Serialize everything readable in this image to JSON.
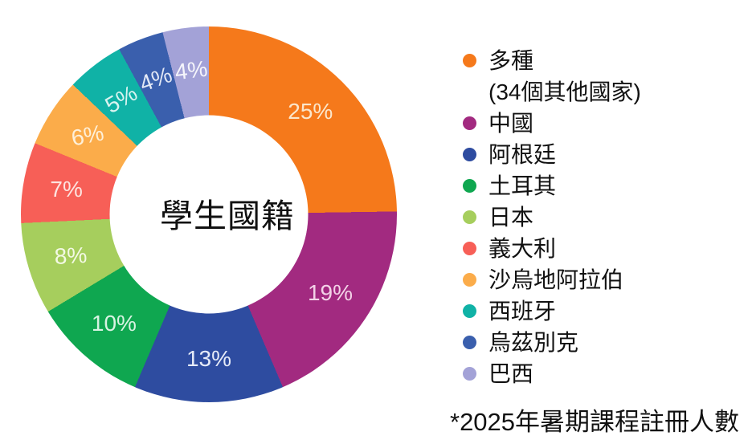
{
  "chart_data": {
    "type": "pie",
    "subtype": "donut",
    "center_label": "學生國籍",
    "unit": "%",
    "legend_position": "right",
    "slices": [
      {
        "label": "多種 (34個其他國家)",
        "legend_lines": [
          "多種",
          "(34個其他國家)"
        ],
        "value": 25,
        "display": "25%",
        "color": "#F5791B",
        "text_color": "#FBE6CB",
        "label_rotation": 0
      },
      {
        "label": "中國",
        "legend_lines": [
          "中國"
        ],
        "value": 19,
        "display": "19%",
        "color": "#A22A80",
        "text_color": "#F3D2E7",
        "label_rotation": 0
      },
      {
        "label": "阿根廷",
        "legend_lines": [
          "阿根廷"
        ],
        "value": 13,
        "display": "13%",
        "color": "#2E4CA0",
        "text_color": "#E6EBF8",
        "label_rotation": 0
      },
      {
        "label": "土耳其",
        "legend_lines": [
          "土耳其"
        ],
        "value": 10,
        "display": "10%",
        "color": "#0FA750",
        "text_color": "#D8F3E2",
        "label_rotation": 0
      },
      {
        "label": "日本",
        "legend_lines": [
          "日本"
        ],
        "value": 8,
        "display": "8%",
        "color": "#A6CE5D",
        "text_color": "#F3F9E4",
        "label_rotation": -3
      },
      {
        "label": "義大利",
        "legend_lines": [
          "義大利"
        ],
        "value": 7,
        "display": "7%",
        "color": "#F75F57",
        "text_color": "#FDE4E0",
        "label_rotation": 0
      },
      {
        "label": "沙烏地阿拉伯",
        "legend_lines": [
          "沙烏地阿拉伯"
        ],
        "value": 6,
        "display": "6%",
        "color": "#FBAC4A",
        "text_color": "#FEF0D9",
        "label_rotation": -11
      },
      {
        "label": "西班牙",
        "legend_lines": [
          "西班牙"
        ],
        "value": 5,
        "display": "5%",
        "color": "#10B2A6",
        "text_color": "#D9F4F0",
        "label_rotation": -30
      },
      {
        "label": "烏茲別克",
        "legend_lines": [
          "烏茲別克"
        ],
        "value": 4,
        "display": "4%",
        "color": "#3A5FAD",
        "text_color": "#E2E8F6",
        "label_rotation": -20
      },
      {
        "label": "巴西",
        "legend_lines": [
          "巴西"
        ],
        "value": 4,
        "display": "4%",
        "color": "#A3A2D7",
        "text_color": "#F5F5FB",
        "label_rotation": -7
      }
    ]
  },
  "footnote": "*2025年暑期課程註冊人數"
}
